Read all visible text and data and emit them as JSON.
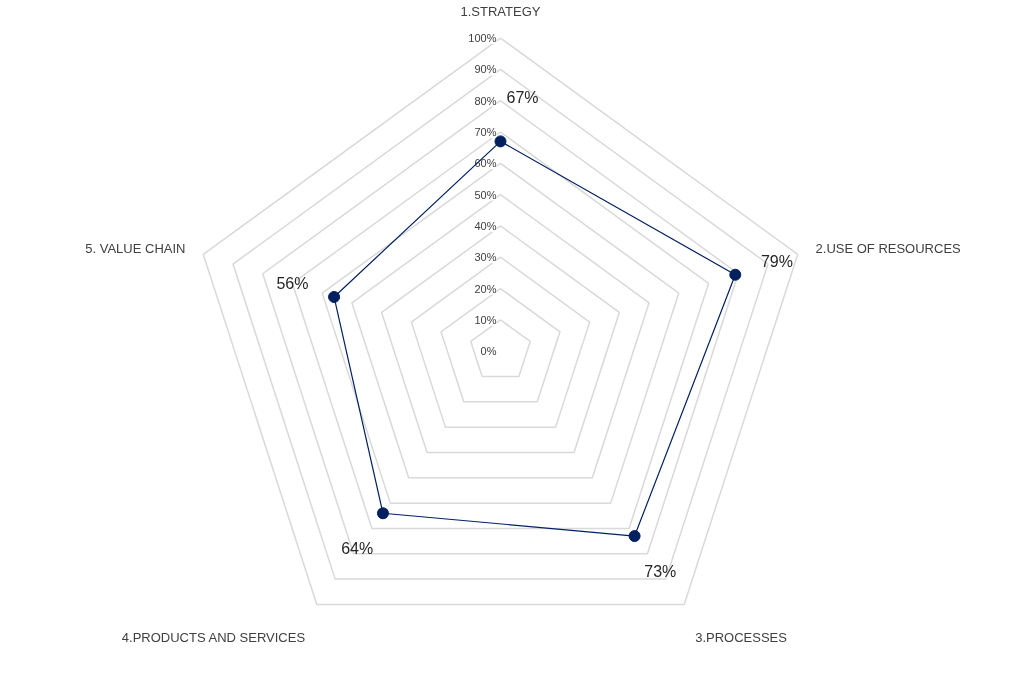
{
  "chart_data": {
    "type": "radar",
    "categories": [
      "1.STRATEGY",
      "2.USE OF RESOURCES",
      "3.PROCESSES",
      "4.PRODUCTS AND SERVICES",
      "5. VALUE CHAIN"
    ],
    "series": [
      {
        "color": "#002060",
        "values": [
          67,
          79,
          73,
          64,
          56
        ]
      }
    ],
    "ylim": [
      0,
      100
    ],
    "yticks": [
      {
        "value": 0,
        "label": "0%"
      },
      {
        "value": 10,
        "label": "10%"
      },
      {
        "value": 20,
        "label": "20%"
      },
      {
        "value": 30,
        "label": "30%"
      },
      {
        "value": 40,
        "label": "40%"
      },
      {
        "value": 50,
        "label": "50%"
      },
      {
        "value": 60,
        "label": "60%"
      },
      {
        "value": 70,
        "label": "70%"
      },
      {
        "value": 80,
        "label": "80%"
      },
      {
        "value": 90,
        "label": "90%"
      },
      {
        "value": 100,
        "label": "100%"
      }
    ],
    "value_labels": [
      "67%",
      "79%",
      "73%",
      "64%",
      "56%"
    ],
    "grid": true,
    "marker": "circle",
    "line_style": "solid"
  }
}
